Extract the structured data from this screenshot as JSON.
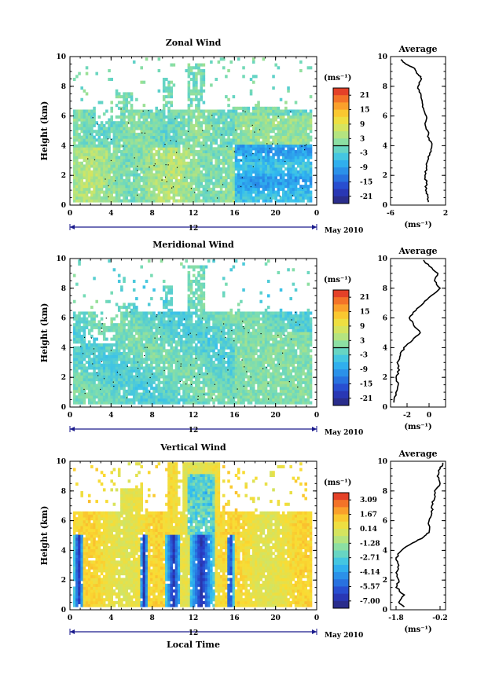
{
  "chart_data": [
    {
      "type": "heatmap",
      "title": "Zonal Wind",
      "ylabel": "Height (km)",
      "xlabel": "",
      "x_ticks": [
        "0",
        "4",
        "8",
        "12",
        "16",
        "20",
        "0"
      ],
      "y_ticks": [
        "0",
        "2",
        "4",
        "6",
        "8",
        "10"
      ],
      "xlim": [
        0,
        24
      ],
      "ylim": [
        0,
        10
      ],
      "date_marker": "12",
      "date_label": "May 2010",
      "colorbar": {
        "unit": "(ms⁻¹)",
        "ticks": [
          "21",
          "15",
          "9",
          "3",
          "-3",
          "-9",
          "-15",
          "-21"
        ],
        "range": [
          -24,
          24
        ]
      },
      "profile": {
        "title": "Average",
        "xlabel": "(ms⁻¹)",
        "x_ticks": [
          "-6",
          "2"
        ],
        "xlim": [
          -6,
          2
        ],
        "y_ticks": [
          "0",
          "2",
          "4",
          "6",
          "8",
          "10"
        ],
        "points": [
          [
            -0.5,
            0.2
          ],
          [
            -0.6,
            0.6
          ],
          [
            -0.9,
            1.0
          ],
          [
            -0.8,
            1.5
          ],
          [
            -1.0,
            2.0
          ],
          [
            -0.8,
            2.5
          ],
          [
            -0.6,
            3.0
          ],
          [
            -0.3,
            3.5
          ],
          [
            0.0,
            4.0
          ],
          [
            -0.4,
            4.5
          ],
          [
            -0.6,
            5.0
          ],
          [
            -1.0,
            5.5
          ],
          [
            -0.8,
            6.0
          ],
          [
            -1.2,
            6.5
          ],
          [
            -1.4,
            7.0
          ],
          [
            -1.6,
            7.5
          ],
          [
            -2.0,
            8.0
          ],
          [
            -1.5,
            8.5
          ],
          [
            -2.0,
            8.8
          ],
          [
            -2.5,
            9.2
          ],
          [
            -3.8,
            9.5
          ],
          [
            -4.5,
            9.8
          ]
        ]
      }
    },
    {
      "type": "heatmap",
      "title": "Meridional Wind",
      "ylabel": "Height (km)",
      "xlabel": "",
      "x_ticks": [
        "0",
        "4",
        "8",
        "12",
        "16",
        "20",
        "0"
      ],
      "y_ticks": [
        "0",
        "2",
        "4",
        "6",
        "8",
        "10"
      ],
      "xlim": [
        0,
        24
      ],
      "ylim": [
        0,
        10
      ],
      "date_marker": "12",
      "date_label": "May 2010",
      "colorbar": {
        "unit": "(ms⁻¹)",
        "ticks": [
          "21",
          "15",
          "9",
          "3",
          "-3",
          "-9",
          "-15",
          "-21"
        ],
        "range": [
          -24,
          24
        ]
      },
      "profile": {
        "title": "Average",
        "xlabel": "(ms⁻¹)",
        "x_ticks": [
          "-2",
          "0"
        ],
        "xlim": [
          -3.5,
          1.5
        ],
        "y_ticks": [
          "0",
          "2",
          "4",
          "6",
          "8",
          "10"
        ],
        "points": [
          [
            -3.2,
            0.3
          ],
          [
            -3.0,
            0.8
          ],
          [
            -2.8,
            1.5
          ],
          [
            -3.0,
            2.0
          ],
          [
            -2.7,
            2.5
          ],
          [
            -2.9,
            3.0
          ],
          [
            -2.6,
            3.5
          ],
          [
            -2.3,
            4.0
          ],
          [
            -1.5,
            4.5
          ],
          [
            -0.8,
            5.0
          ],
          [
            -1.4,
            5.5
          ],
          [
            -1.8,
            6.0
          ],
          [
            -1.2,
            6.5
          ],
          [
            -0.5,
            7.0
          ],
          [
            0.2,
            7.5
          ],
          [
            1.0,
            8.0
          ],
          [
            0.5,
            8.5
          ],
          [
            0.8,
            9.0
          ],
          [
            0.0,
            9.5
          ],
          [
            -0.5,
            9.9
          ]
        ]
      }
    },
    {
      "type": "heatmap",
      "title": "Vertical Wind",
      "ylabel": "Height (km)",
      "xlabel": "Local Time",
      "x_ticks": [
        "0",
        "4",
        "8",
        "12",
        "16",
        "20",
        "0"
      ],
      "y_ticks": [
        "0",
        "2",
        "4",
        "6",
        "8",
        "10"
      ],
      "xlim": [
        0,
        24
      ],
      "ylim": [
        0,
        10
      ],
      "date_marker": "12",
      "date_label": "May 2010",
      "colorbar": {
        "unit": "(ms⁻¹)",
        "ticks": [
          "3.09",
          "1.67",
          "0.14",
          "-1.28",
          "-2.71",
          "-4.14",
          "-5.57",
          "-7.00"
        ],
        "range": [
          -7.71,
          3.8
        ]
      },
      "profile": {
        "title": "Average",
        "xlabel": "(ms⁻¹)",
        "x_ticks": [
          "-1.8",
          "-0.2"
        ],
        "xlim": [
          -2.0,
          0.0
        ],
        "y_ticks": [
          "0",
          "2",
          "4",
          "6",
          "8",
          "10"
        ],
        "points": [
          [
            -1.5,
            0.2
          ],
          [
            -1.7,
            0.5
          ],
          [
            -1.5,
            1.0
          ],
          [
            -1.8,
            1.5
          ],
          [
            -1.7,
            2.0
          ],
          [
            -1.8,
            2.5
          ],
          [
            -1.7,
            3.0
          ],
          [
            -1.8,
            3.5
          ],
          [
            -1.6,
            4.0
          ],
          [
            -1.2,
            4.5
          ],
          [
            -0.8,
            4.9
          ],
          [
            -0.6,
            5.2
          ],
          [
            -0.6,
            6.0
          ],
          [
            -0.5,
            6.5
          ],
          [
            -0.5,
            7.0
          ],
          [
            -0.4,
            7.5
          ],
          [
            -0.4,
            8.0
          ],
          [
            -0.2,
            8.5
          ],
          [
            -0.3,
            9.0
          ],
          [
            -0.2,
            9.5
          ],
          [
            -0.1,
            9.9
          ]
        ]
      }
    }
  ]
}
